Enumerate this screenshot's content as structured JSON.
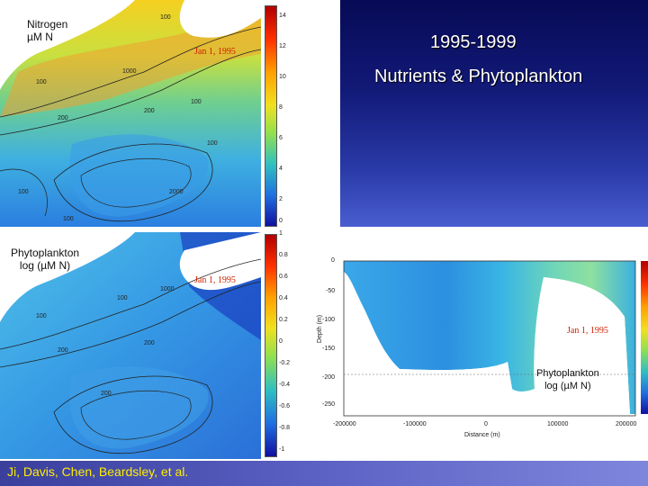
{
  "title": {
    "years": "1995-1999",
    "subtitle": "Nutrients & Phytoplankton"
  },
  "credit": "Ji, Davis, Chen, Beardsley, et al.",
  "nitrogen_map": {
    "label_line1": "Nitrogen",
    "label_line2": "µM N",
    "date": "Jan 1, 1995",
    "colorbar_ticks": [
      "14",
      "12",
      "10",
      "8",
      "6",
      "4",
      "2",
      "0"
    ],
    "contours": [
      "100",
      "100",
      "200",
      "200",
      "100",
      "1000",
      "100",
      "100",
      "2000",
      "100"
    ]
  },
  "phyto_map": {
    "label_line1": "Phytoplankton",
    "label_line2": "log (µM N)",
    "date": "Jan 1, 1995",
    "colorbar_ticks": [
      "1",
      "0.8",
      "0.6",
      "0.4",
      "0.2",
      "0",
      "-0.2",
      "-0.4",
      "-0.6",
      "-0.8",
      "-1"
    ],
    "contours": [
      "100",
      "100",
      "200",
      "200",
      "200",
      "1000"
    ]
  },
  "section": {
    "label_line1": "Phytoplankton",
    "label_line2": "log (µM N)",
    "date": "Jan 1, 1995",
    "ylabel": "Depth (m)",
    "xlabel": "Distance (m)",
    "y_ticks": [
      "0",
      "-50",
      "-100",
      "-150",
      "-200",
      "-250"
    ],
    "x_ticks": [
      "-200000",
      "-100000",
      "0",
      "100000",
      "200000"
    ]
  },
  "colors": {
    "accent_text": "#ffee00",
    "date_text": "#cc2200"
  }
}
